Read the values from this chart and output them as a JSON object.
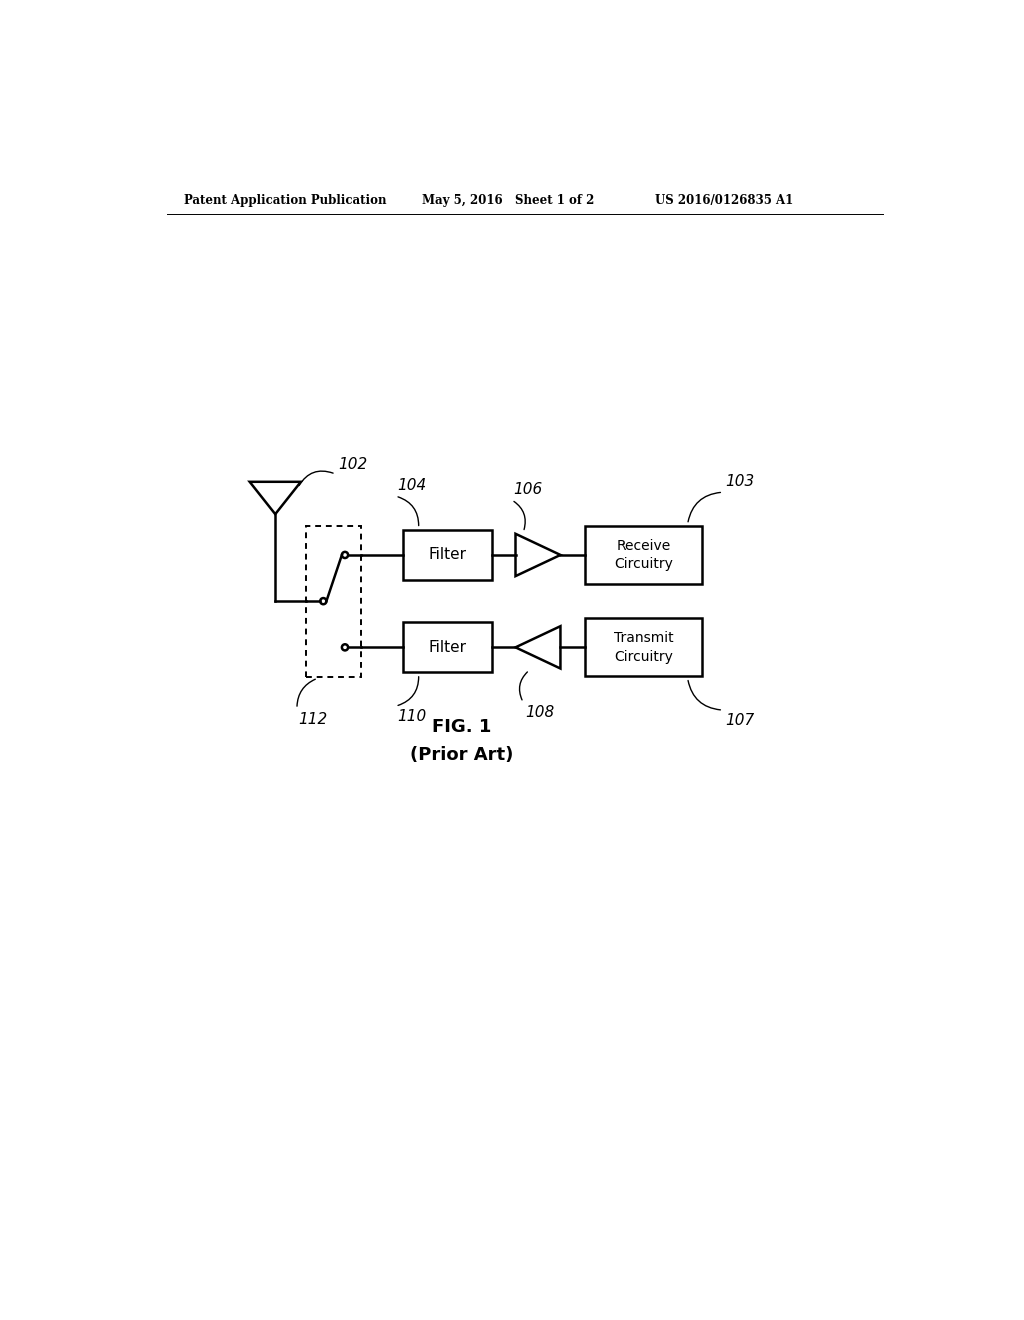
{
  "bg_color": "#ffffff",
  "header_left": "Patent Application Publication",
  "header_mid": "May 5, 2016   Sheet 1 of 2",
  "header_right": "US 2016/0126835 A1",
  "fig_label": "FIG. 1",
  "fig_sublabel": "(Prior Art)",
  "antenna_label": "102",
  "duplexer_label": "112",
  "rx_filter_label": "104",
  "rx_filter_text": "Filter",
  "rx_amp_label": "106",
  "rx_circ_label": "103",
  "rx_circ_text": "Receive\nCircuitry",
  "tx_filter_label": "110",
  "tx_filter_text": "Filter",
  "tx_amp_label": "108",
  "tx_circ_label": "107",
  "tx_circ_text": "Transmit\nCircuitry"
}
